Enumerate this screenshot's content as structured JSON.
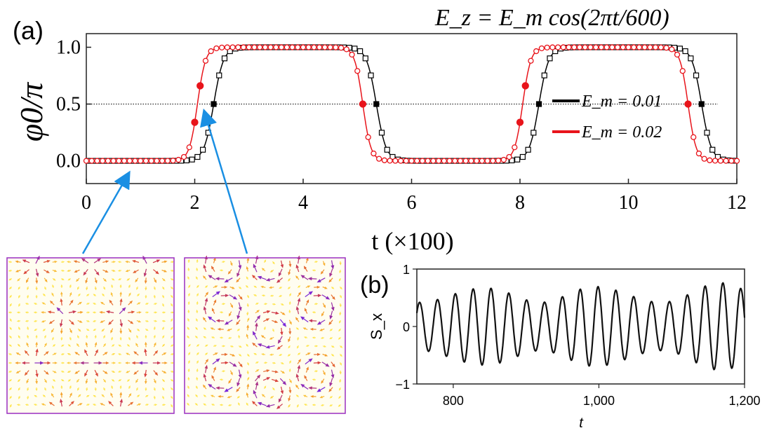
{
  "chart_data": [
    {
      "type": "line",
      "panel_label": "(a)",
      "equation": "E_z = E_m cos(2πt/600)",
      "xlabel": "t (×100)",
      "ylabel": "φ0/π",
      "xlim": [
        0,
        12
      ],
      "ylim": [
        -0.2,
        1.12
      ],
      "xticks": [
        "0",
        "2",
        "4",
        "6",
        "8",
        "10",
        "12"
      ],
      "yticks": [
        "0.0",
        "0.5",
        "1.0"
      ],
      "reference_line_y": 0.5,
      "legend": [
        {
          "label": "E_m = 0.01",
          "color": "#000000"
        },
        {
          "label": "E_m = 0.02",
          "color": "#e8141b"
        }
      ],
      "series": [
        {
          "name": "E_m = 0.01",
          "color": "#000000",
          "transitions": [
            {
              "t": 2.35,
              "from": 0,
              "to": 1
            },
            {
              "t": 5.35,
              "from": 1,
              "to": 0
            },
            {
              "t": 8.35,
              "from": 0,
              "to": 1
            },
            {
              "t": 11.35,
              "from": 1,
              "to": 0
            }
          ]
        },
        {
          "name": "E_m = 0.02",
          "color": "#e8141b",
          "transitions": [
            {
              "t": 2.05,
              "from": 0,
              "to": 1
            },
            {
              "t": 5.1,
              "from": 1,
              "to": 0
            },
            {
              "t": 8.05,
              "from": 0,
              "to": 1
            },
            {
              "t": 11.1,
              "from": 1,
              "to": 0
            }
          ]
        }
      ]
    },
    {
      "type": "line",
      "panel_label": "(b)",
      "xlabel": "t",
      "ylabel": "S_x",
      "xlim": [
        750,
        1200
      ],
      "ylim": [
        -1,
        1
      ],
      "xticks": [
        "800",
        "1,000",
        "1,200"
      ],
      "yticks": [
        "1",
        "0",
        "−1"
      ],
      "series": [
        {
          "name": "S_x",
          "color": "#111111",
          "period": 24.5,
          "amplitude_range": [
            0.42,
            0.76
          ]
        }
      ]
    }
  ],
  "insets": [
    {
      "name": "inset-hedgehog",
      "description_color": "#9a2fc0"
    },
    {
      "name": "inset-vortex",
      "description_color": "#9a2fc0"
    }
  ],
  "arrow_color": "#1a8fe3"
}
